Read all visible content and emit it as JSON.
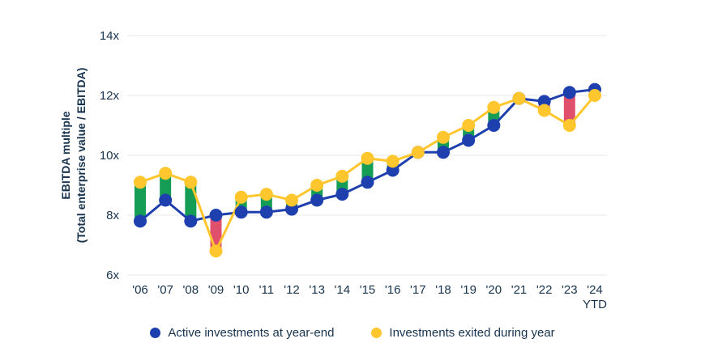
{
  "y_axis": {
    "label_line1": "EBITDA multiple",
    "label_line2": "(Total enterprise value / EBITDA)"
  },
  "legend": [
    {
      "label": "Active investments at year-end",
      "color": "#1E3FAE"
    },
    {
      "label": "Investments exited during year",
      "color": "#FFC62E"
    }
  ],
  "chart_data": {
    "type": "line",
    "title": "",
    "ylabel": "EBITDA multiple (Total enterprise value / EBITDA)",
    "xlabel": "",
    "ylim": [
      6,
      14
    ],
    "y_ticks": [
      6,
      8,
      10,
      12,
      14
    ],
    "y_tick_format": "{v}x",
    "grid": "horizontal-only",
    "legend_position": "bottom",
    "categories": [
      "'06",
      "'07",
      "'08",
      "'09",
      "'10",
      "'11",
      "'12",
      "'13",
      "'14",
      "'15",
      "'16",
      "'17",
      "'18",
      "'19",
      "'20",
      "'21",
      "'22",
      "'23",
      "'24 YTD"
    ],
    "series": [
      {
        "name": "Active investments at year-end",
        "color": "#1E3FAE",
        "values": [
          7.8,
          8.5,
          7.8,
          8.0,
          8.1,
          8.1,
          8.2,
          8.5,
          8.7,
          9.1,
          9.5,
          10.1,
          10.1,
          10.5,
          11.0,
          11.9,
          11.8,
          12.1,
          12.2
        ]
      },
      {
        "name": "Investments exited during year",
        "color": "#FFC62E",
        "values": [
          9.1,
          9.4,
          9.1,
          6.8,
          8.6,
          8.7,
          8.5,
          9.0,
          9.3,
          9.9,
          9.8,
          10.1,
          10.6,
          11.0,
          11.6,
          11.9,
          11.5,
          11.0,
          12.0
        ]
      }
    ],
    "delta_bars": {
      "positive_color": "#159C55",
      "negative_color": "#E0506C"
    },
    "colors": {
      "grid": "#E7E7E7",
      "text": "#17334D",
      "background": "#FFFFFF"
    }
  }
}
